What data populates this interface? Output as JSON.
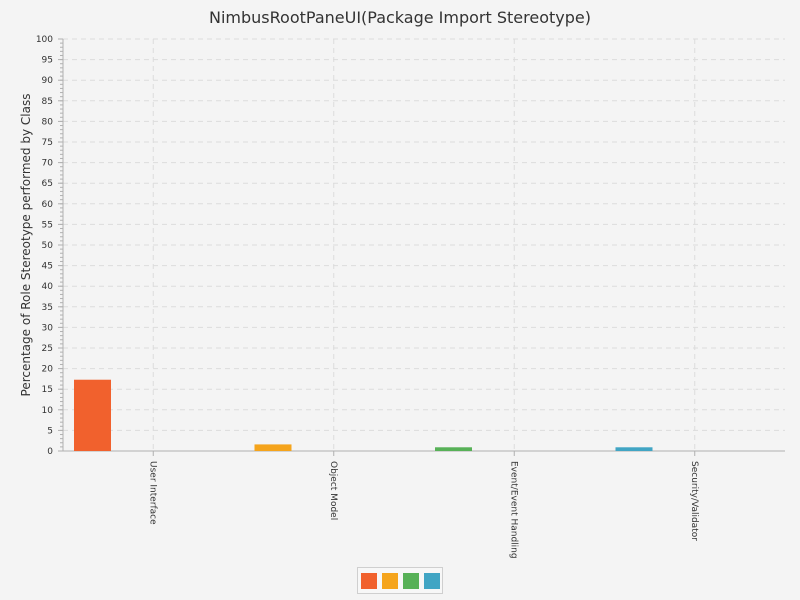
{
  "chart_data": {
    "type": "bar",
    "title": "NimbusRootPaneUI(Package Import Stereotype)",
    "ylabel": "Percentage of Role Stereotype performed by Class",
    "xlabel": "",
    "ylim": [
      0,
      100
    ],
    "ytick_step": 5,
    "grid": true,
    "legend_placement": "bottom",
    "categories": [
      "User Interface",
      "Object Model",
      "Event/Event Handling",
      "Security/Validator"
    ],
    "values": [
      17.3,
      1.6,
      0.9,
      0.9
    ],
    "colors": [
      "#f1612d",
      "#f5a41c",
      "#57b157",
      "#41a5c4"
    ]
  }
}
